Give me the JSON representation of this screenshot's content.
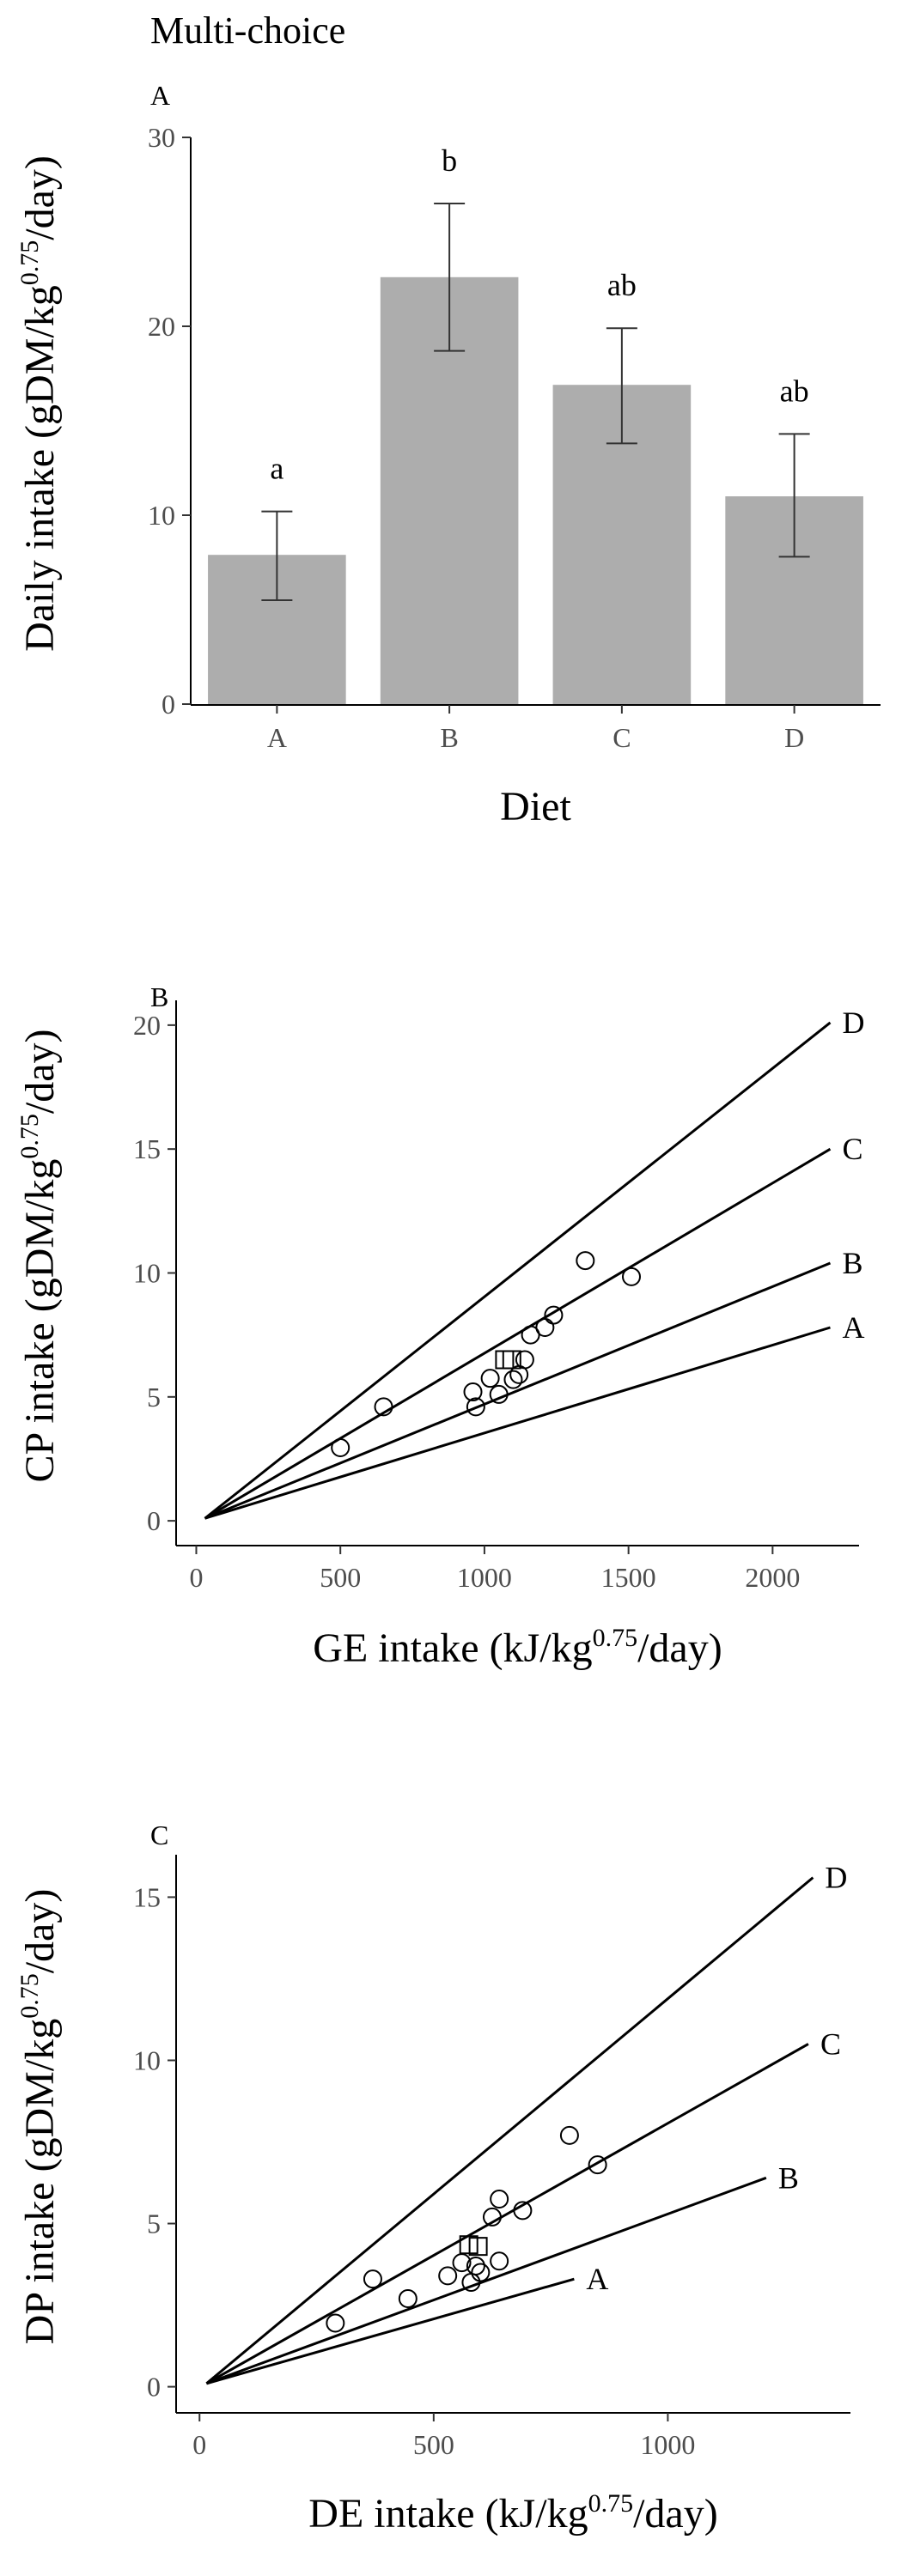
{
  "page_title": "Multi-choice",
  "chart_data": [
    {
      "type": "bar",
      "panel_label": "A",
      "xlabel": "Diet",
      "ylabel": "Daily intake (gDM/kg",
      "ylabel_sup": "0.75",
      "ylabel_tail": "/day)",
      "ylim": [
        0,
        30
      ],
      "yticks": [
        0,
        10,
        20,
        30
      ],
      "categories": [
        "A",
        "B",
        "C",
        "D"
      ],
      "values": [
        7.9,
        22.6,
        16.9,
        11.0
      ],
      "error_low": [
        5.5,
        18.7,
        13.8,
        7.8
      ],
      "error_high": [
        10.2,
        26.5,
        19.9,
        14.3
      ],
      "group_letters": [
        "a",
        "b",
        "ab",
        "ab"
      ],
      "bar_color": "#adadad",
      "grid": false
    },
    {
      "type": "scatter",
      "panel_label": "B",
      "xlabel": "GE intake (kJ/kg",
      "xlabel_sup": "0.75",
      "xlabel_tail": "/day)",
      "ylabel": "CP intake (gDM/kg",
      "ylabel_sup": "0.75",
      "ylabel_tail": "/day)",
      "xlim": [
        -70,
        2300
      ],
      "ylim": [
        -1,
        21
      ],
      "xticks": [
        0,
        500,
        1000,
        1500,
        2000
      ],
      "yticks": [
        0,
        5,
        10,
        15,
        20
      ],
      "grid": false,
      "lines": [
        {
          "name": "A",
          "x": [
            30,
            2200
          ],
          "y": [
            0.1,
            7.8
          ]
        },
        {
          "name": "B",
          "x": [
            30,
            2200
          ],
          "y": [
            0.1,
            10.4
          ]
        },
        {
          "name": "C",
          "x": [
            30,
            2200
          ],
          "y": [
            0.1,
            15.0
          ]
        },
        {
          "name": "D",
          "x": [
            30,
            2200
          ],
          "y": [
            0.1,
            20.1
          ]
        }
      ],
      "points_circle": [
        {
          "x": 500,
          "y": 2.95
        },
        {
          "x": 650,
          "y": 4.6
        },
        {
          "x": 960,
          "y": 5.2
        },
        {
          "x": 970,
          "y": 4.6
        },
        {
          "x": 1020,
          "y": 5.75
        },
        {
          "x": 1050,
          "y": 5.1
        },
        {
          "x": 1100,
          "y": 5.7
        },
        {
          "x": 1120,
          "y": 5.9
        },
        {
          "x": 1140,
          "y": 6.5
        },
        {
          "x": 1160,
          "y": 7.5
        },
        {
          "x": 1210,
          "y": 7.8
        },
        {
          "x": 1240,
          "y": 8.3
        },
        {
          "x": 1350,
          "y": 10.5
        },
        {
          "x": 1510,
          "y": 9.85
        }
      ],
      "points_square": [
        {
          "x": 1070,
          "y": 6.5
        },
        {
          "x": 1095,
          "y": 6.5
        }
      ]
    },
    {
      "type": "scatter",
      "panel_label": "C",
      "xlabel": "DE intake (kJ/kg",
      "xlabel_sup": "0.75",
      "xlabel_tail": "/day)",
      "ylabel": "DP intake (gDM/kg",
      "ylabel_sup": "0.75",
      "ylabel_tail": "/day)",
      "xlim": [
        -50,
        1390
      ],
      "ylim": [
        -0.8,
        16.3
      ],
      "xticks": [
        0,
        500,
        1000
      ],
      "yticks": [
        0,
        5,
        10,
        15
      ],
      "grid": false,
      "lines": [
        {
          "name": "A",
          "x": [
            15,
            800
          ],
          "y": [
            0.1,
            3.3
          ]
        },
        {
          "name": "B",
          "x": [
            15,
            1210
          ],
          "y": [
            0.1,
            6.4
          ]
        },
        {
          "name": "C",
          "x": [
            15,
            1300
          ],
          "y": [
            0.1,
            10.5
          ]
        },
        {
          "name": "D",
          "x": [
            15,
            1310
          ],
          "y": [
            0.1,
            15.6
          ]
        }
      ],
      "points_circle": [
        {
          "x": 290,
          "y": 1.95
        },
        {
          "x": 370,
          "y": 3.3
        },
        {
          "x": 445,
          "y": 2.7
        },
        {
          "x": 530,
          "y": 3.4
        },
        {
          "x": 560,
          "y": 3.8
        },
        {
          "x": 580,
          "y": 3.2
        },
        {
          "x": 590,
          "y": 3.7
        },
        {
          "x": 600,
          "y": 3.5
        },
        {
          "x": 625,
          "y": 5.2
        },
        {
          "x": 640,
          "y": 3.85
        },
        {
          "x": 640,
          "y": 5.75
        },
        {
          "x": 690,
          "y": 5.4
        },
        {
          "x": 790,
          "y": 7.7
        },
        {
          "x": 850,
          "y": 6.8
        }
      ],
      "points_square": [
        {
          "x": 575,
          "y": 4.35
        },
        {
          "x": 595,
          "y": 4.3
        }
      ]
    }
  ]
}
